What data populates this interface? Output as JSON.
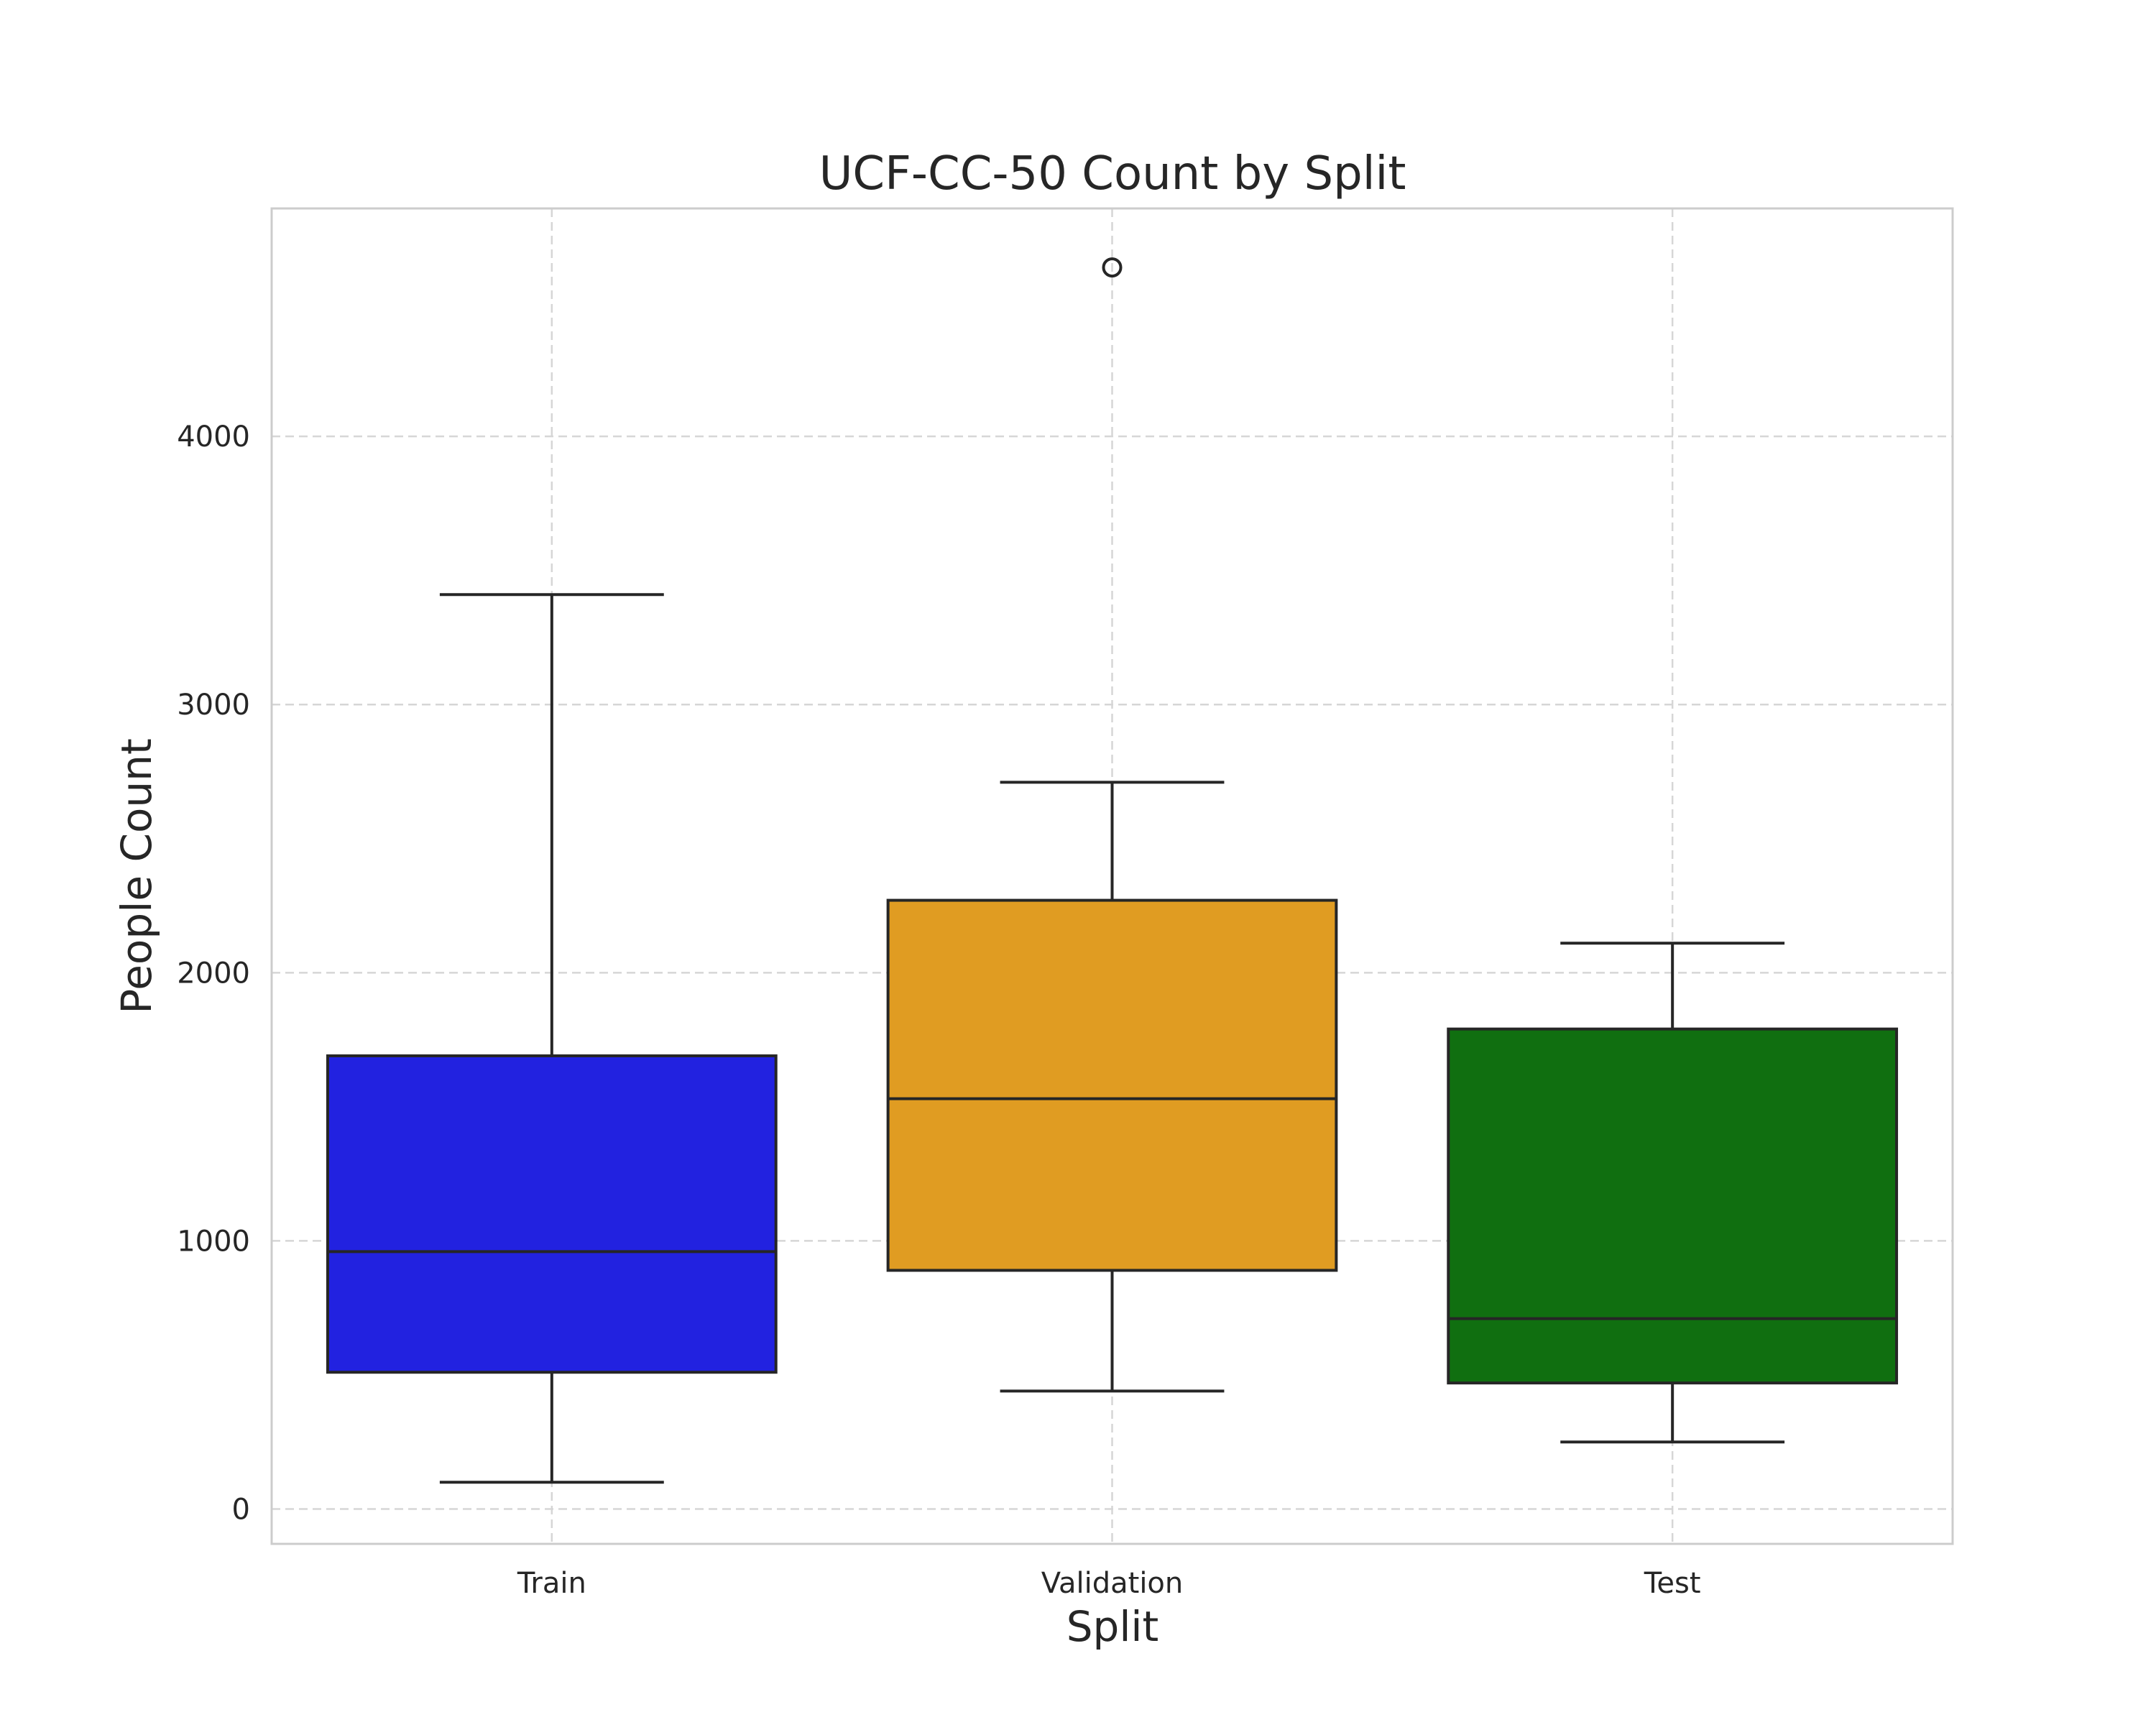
{
  "chart_data": {
    "type": "box",
    "title": "UCF-CC-50 Count by Split",
    "xlabel": "Split",
    "ylabel": "People Count",
    "ylim": [
      -130,
      4850
    ],
    "yticks": [
      0,
      1000,
      2000,
      3000,
      4000
    ],
    "categories": [
      "Train",
      "Validation",
      "Test"
    ],
    "grid": true,
    "boxes": [
      {
        "category": "Train",
        "color": "#2222e0",
        "whisker_low": 100,
        "q1": 510,
        "median": 960,
        "q3": 1690,
        "whisker_high": 3410,
        "outliers": []
      },
      {
        "category": "Validation",
        "color": "#e09c22",
        "whisker_low": 440,
        "q1": 890,
        "median": 1530,
        "q3": 2270,
        "whisker_high": 2710,
        "outliers": [
          4630
        ]
      },
      {
        "category": "Test",
        "color": "#106f10",
        "whisker_low": 250,
        "q1": 470,
        "median": 710,
        "q3": 1790,
        "whisker_high": 2110,
        "outliers": []
      }
    ]
  }
}
